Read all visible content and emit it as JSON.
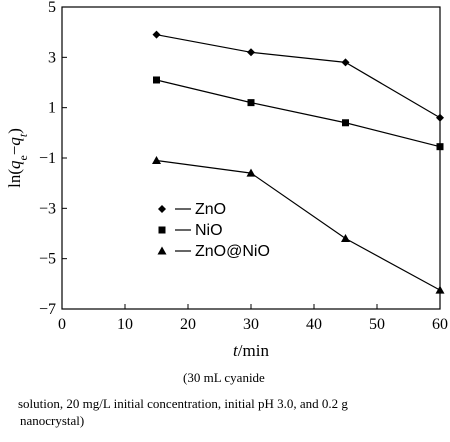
{
  "chart_data": {
    "type": "line",
    "xlim": [
      0,
      60
    ],
    "ylim": [
      -7,
      5
    ],
    "xticks": [
      0,
      10,
      20,
      30,
      40,
      50,
      60
    ],
    "yticks": [
      -7,
      -5,
      -3,
      -1,
      1,
      3,
      5
    ],
    "xlabel": "t/min",
    "ylabel": "ln(qe−qt)",
    "legend_position": "center-left",
    "series": [
      {
        "name": "ZnO",
        "marker": "diamond",
        "x": [
          15,
          30,
          45,
          60
        ],
        "y": [
          3.9,
          3.2,
          2.8,
          0.6
        ]
      },
      {
        "name": "NiO",
        "marker": "square",
        "x": [
          15,
          30,
          45,
          60
        ],
        "y": [
          2.1,
          1.2,
          0.4,
          -0.55
        ]
      },
      {
        "name": "ZnO@NiO",
        "marker": "triangle",
        "x": [
          15,
          30,
          45,
          60
        ],
        "y": [
          -1.1,
          -1.6,
          -4.2,
          -6.25
        ]
      }
    ]
  },
  "caption": {
    "line1": "(30  mL  cyanide",
    "line2": "solution, 20 mg/L initial concentration, initial pH 3.0, and 0.2 g",
    "line3": "nanocrystal)"
  }
}
